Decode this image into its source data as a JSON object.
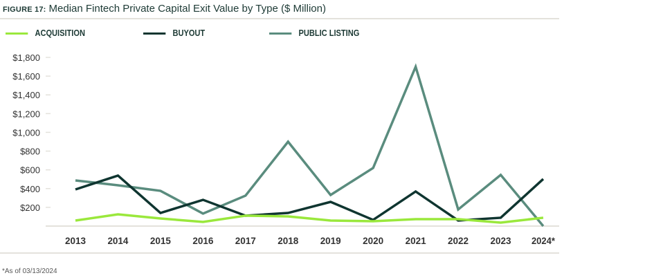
{
  "figure_label": "FIGURE 17:",
  "footnote": "*As of 03/13/2024",
  "chart_data": {
    "type": "line",
    "title": "Median Fintech Private Capital Exit Value by Type ($ Million)",
    "categories": [
      "2013",
      "2014",
      "2015",
      "2016",
      "2017",
      "2018",
      "2019",
      "2020",
      "2021",
      "2022",
      "2023",
      "2024*"
    ],
    "ylim": [
      0,
      1800
    ],
    "yticks": [
      200,
      400,
      600,
      800,
      1000,
      1200,
      1400,
      1600,
      1800
    ],
    "ytick_labels": [
      "$200",
      "$400",
      "$600",
      "$800",
      "$1,000",
      "$1,200",
      "$1,400",
      "$1,600",
      "$1,800"
    ],
    "legend_placement": "top",
    "grid": false,
    "series": [
      {
        "name": "ACQUISITION",
        "color": "#9ae83c",
        "values": [
          59,
          125,
          81,
          44,
          111,
          103,
          59,
          52,
          74,
          74,
          37,
          89
        ]
      },
      {
        "name": "BUYOUT",
        "color": "#0f3530",
        "values": [
          391,
          539,
          140,
          280,
          111,
          140,
          258,
          66,
          369,
          59,
          89,
          502
        ]
      },
      {
        "name": "PUBLIC LISTING",
        "color": "#5a8c7e",
        "values": [
          487,
          435,
          376,
          133,
          325,
          900,
          332,
          620,
          1700,
          177,
          546,
          0
        ]
      }
    ]
  }
}
